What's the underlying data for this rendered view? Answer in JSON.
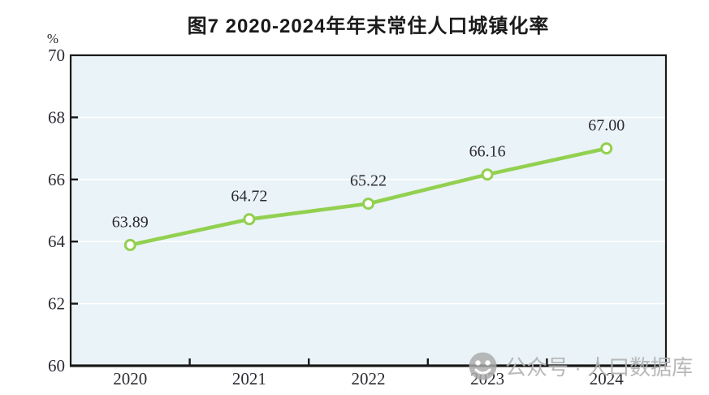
{
  "page": {
    "background": "#ffffff"
  },
  "chart_data": {
    "type": "line",
    "title": "图7  2020-2024年年末常住人口城镇化率",
    "categories": [
      "2020",
      "2021",
      "2022",
      "2023",
      "2024"
    ],
    "values": [
      63.89,
      64.72,
      65.22,
      66.16,
      67.0
    ],
    "data_labels": [
      "63.89",
      "64.72",
      "65.22",
      "66.16",
      "67.00"
    ],
    "xlabel": "",
    "ylabel": "%",
    "ylim": [
      60,
      70
    ],
    "yticks": [
      60,
      62,
      64,
      66,
      68,
      70
    ],
    "grid": true,
    "legend": "none",
    "line_color": "#92d050",
    "marker_fill": "#ffffff",
    "marker_stroke": "#92d050",
    "plot_bg": "#eaf3f7",
    "gridline_color": "#ffffff",
    "axis_color": "#1a1a1a",
    "tick_label_color": "#2b2b33"
  },
  "watermark": {
    "icon": "wechat-official-account-icon",
    "text": "公众号 · 人口数据库",
    "color": "#b3b3b3"
  }
}
